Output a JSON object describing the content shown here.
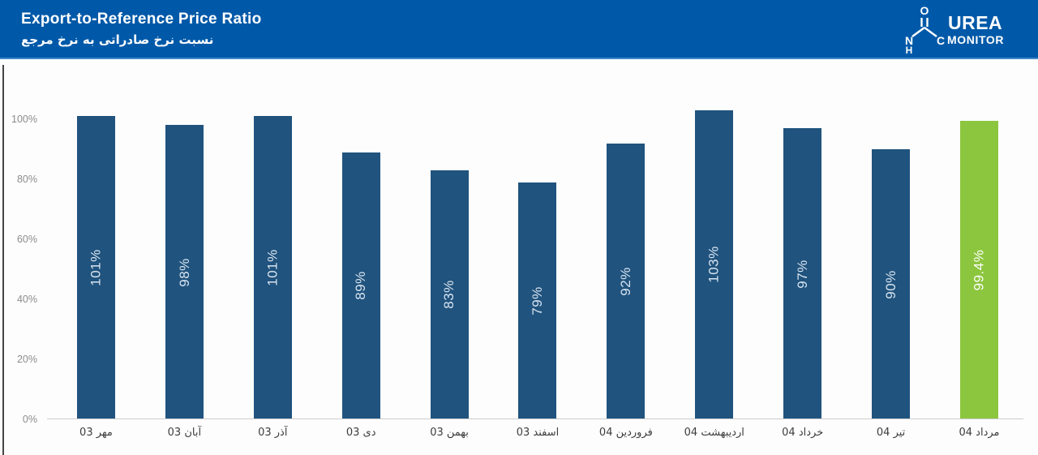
{
  "header": {
    "title": "Export-to-Reference Price Ratio",
    "subtitle_fa": "نسبت نرخ صادراتی به نرخ مرجع",
    "logo": {
      "brand_top": "UREA",
      "brand_bottom": "MONITOR",
      "atom_o": "O",
      "atom_n": "N",
      "atom_h": "H",
      "atom_c": "C"
    }
  },
  "colors": {
    "header_bg": "#0059A8",
    "bar_blue": "#20537E",
    "bar_green": "#8CC63E",
    "bar_label_blue": "#D8E4F0",
    "bar_label_green": "#FFFFFF",
    "y_label": "#8C8C8C",
    "x_label": "#3D3D3D",
    "baseline": "#CCCCCC"
  },
  "chart_data": {
    "type": "bar",
    "title": "Export-to-Reference Price Ratio",
    "subtitle": "نسبت نرخ صادراتی به نرخ مرجع",
    "categories": [
      "مهر 03",
      "آبان 03",
      "آذر 03",
      "دی 03",
      "بهمن 03",
      "اسفند 03",
      "فروردین 04",
      "اردیبهشت 04",
      "خرداد 04",
      "تیر 04",
      "مرداد 04"
    ],
    "values": [
      101,
      98,
      101,
      89,
      83,
      79,
      92,
      103,
      97,
      90,
      99.4
    ],
    "labels": [
      "101%",
      "98%",
      "101%",
      "89%",
      "83%",
      "79%",
      "92%",
      "103%",
      "97%",
      "90%",
      "99.4%"
    ],
    "highlight_index": 10,
    "highlight_color": "#8CC63E",
    "bar_color": "#20537E",
    "y_ticks": [
      "0%",
      "20%",
      "40%",
      "60%",
      "80%",
      "100%"
    ],
    "y_tick_values": [
      0,
      20,
      40,
      60,
      80,
      100
    ],
    "ylim": [
      0,
      108
    ],
    "grid": false,
    "legend": "none",
    "value_label_position": "inside-rotated"
  }
}
